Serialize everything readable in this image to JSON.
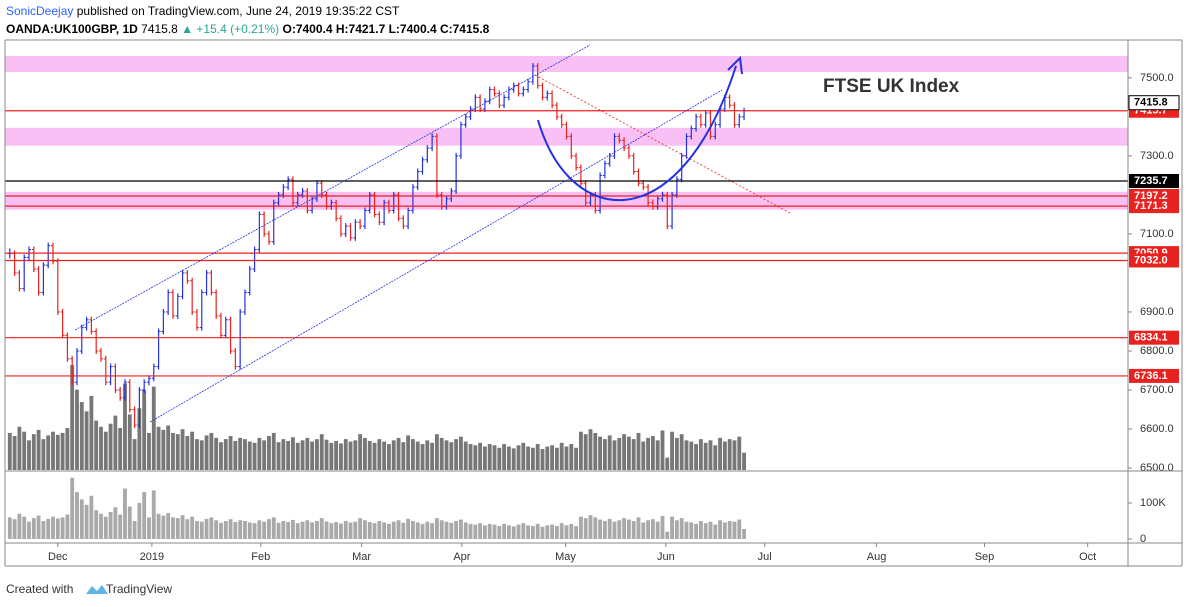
{
  "header": {
    "user": "SonicDeejay",
    "published": "published on TradingView.com, June 24, 2019 19:35:22 CST",
    "symbol": "OANDA:UK100GBP, 1D",
    "last": "7415.8",
    "change": "▲ +15.4 (+0.21%)",
    "open": "O:7400.4",
    "high": "H:7421.7",
    "low": "L:7400.4",
    "close": "C:7415.8"
  },
  "footer": {
    "created": "Created with",
    "brand": "TradingView"
  },
  "chart_data": {
    "type": "ohlc",
    "title": "FTSE UK Index",
    "up_color": "#2433e0",
    "down_color": "#e8221f",
    "volume_color": "#777777",
    "volume_pane_color": "#a9a9a9",
    "values": [
      7050,
      7000,
      6960,
      7040,
      7060,
      7010,
      6950,
      7020,
      7070,
      7030,
      6900,
      6840,
      6780,
      6720,
      6800,
      6860,
      6880,
      6850,
      6800,
      6780,
      6720,
      6760,
      6700,
      6680,
      6720,
      6650,
      6610,
      6700,
      6720,
      6730,
      6760,
      6850,
      6900,
      6950,
      6890,
      6940,
      7000,
      6980,
      6900,
      6860,
      6950,
      7000,
      6950,
      6890,
      6840,
      6880,
      6800,
      6760,
      6900,
      6950,
      7010,
      7060,
      7150,
      7100,
      7080,
      7180,
      7200,
      7220,
      7240,
      7180,
      7200,
      7210,
      7160,
      7190,
      7230,
      7200,
      7170,
      7180,
      7140,
      7100,
      7120,
      7090,
      7130,
      7120,
      7160,
      7200,
      7150,
      7130,
      7180,
      7160,
      7200,
      7140,
      7120,
      7160,
      7220,
      7260,
      7290,
      7320,
      7350,
      7200,
      7170,
      7190,
      7210,
      7300,
      7380,
      7400,
      7420,
      7450,
      7420,
      7440,
      7470,
      7460,
      7430,
      7450,
      7470,
      7480,
      7460,
      7470,
      7490,
      7530,
      7480,
      7450,
      7460,
      7430,
      7400,
      7380,
      7350,
      7300,
      7270,
      7230,
      7180,
      7200,
      7160,
      7250,
      7280,
      7300,
      7350,
      7340,
      7320,
      7300,
      7260,
      7230,
      7220,
      7180,
      7170,
      7190,
      7200,
      7120,
      7200,
      7240,
      7300,
      7350,
      7370,
      7400,
      7380,
      7410,
      7350,
      7380,
      7420,
      7450,
      7430,
      7380,
      7400,
      7415.8
    ],
    "volume": [
      60000,
      55000,
      70000,
      62000,
      48000,
      58000,
      65000,
      50000,
      56000,
      62000,
      57000,
      60000,
      68000,
      170000,
      130000,
      110000,
      95000,
      120000,
      80000,
      70000,
      62000,
      75000,
      88000,
      68000,
      140000,
      90000,
      50000,
      100000,
      130000,
      60000,
      135000,
      70000,
      65000,
      72000,
      60000,
      58000,
      66000,
      55000,
      62000,
      50000,
      48000,
      56000,
      60000,
      52000,
      45000,
      50000,
      55000,
      47000,
      52000,
      50000,
      46000,
      44000,
      52000,
      48000,
      55000,
      60000,
      45000,
      50000,
      47000,
      53000,
      44000,
      48000,
      52000,
      46000,
      50000,
      58000,
      49000,
      44000,
      47000,
      43000,
      50000,
      46000,
      48000,
      58000,
      52000,
      47000,
      44000,
      50000,
      46000,
      42000,
      48000,
      52000,
      45000,
      56000,
      50000,
      46000,
      42000,
      48000,
      44000,
      58000,
      52000,
      48000,
      45000,
      50000,
      54000,
      46000,
      42000,
      40000,
      44000,
      38000,
      42000,
      40000,
      36000,
      42000,
      38000,
      35000,
      40000,
      44000,
      38000,
      36000,
      42000,
      34000,
      38000,
      40000,
      36000,
      44000,
      38000,
      42000,
      36000,
      62000,
      58000,
      66000,
      60000,
      54000,
      50000,
      56000,
      48000,
      52000,
      58000,
      54000,
      50000,
      60000,
      46000,
      52000,
      55000,
      48000,
      64000,
      20000,
      62000,
      52000,
      58000,
      48000,
      46000,
      42000,
      50000,
      44000,
      48000,
      40000,
      52000,
      46000,
      50000,
      48000,
      54000,
      28000
    ],
    "xlim": [
      -1,
      233
    ],
    "xticks": [
      {
        "value": 10,
        "label": "Dec"
      },
      {
        "value": 29.6,
        "label": "2019"
      },
      {
        "value": 52.3,
        "label": "Feb"
      },
      {
        "value": 73.3,
        "label": "Mar"
      },
      {
        "value": 94.2,
        "label": "Apr"
      },
      {
        "value": 115.8,
        "label": "May"
      },
      {
        "value": 136.7,
        "label": "Jun"
      },
      {
        "value": 157.3,
        "label": "Jul"
      },
      {
        "value": 180.6,
        "label": "Aug"
      },
      {
        "value": 203.1,
        "label": "Sep"
      },
      {
        "value": 224.6,
        "label": "Oct"
      }
    ],
    "ylim": [
      6495,
      7597
    ],
    "yticks": [
      {
        "value": 7500,
        "label": "7500.0"
      },
      {
        "value": 7300,
        "label": "7300.0"
      },
      {
        "value": 7100,
        "label": "7100.0"
      },
      {
        "value": 6900,
        "label": "6900.0"
      },
      {
        "value": 6800,
        "label": "6800.0"
      },
      {
        "value": 6700,
        "label": "6700.0"
      },
      {
        "value": 6600,
        "label": "6600.0"
      },
      {
        "value": 6500,
        "label": "6500.0"
      }
    ],
    "vlim": [
      0,
      186000
    ],
    "vticks": [
      {
        "value": 100000,
        "label": "100K"
      },
      0
    ],
    "zones": [
      [
        7515,
        7556
      ],
      [
        7326,
        7372
      ],
      [
        7162,
        7208
      ]
    ],
    "zone_color": "#f8b9f5",
    "levels": [
      7415.7,
      7197.2,
      7171.3,
      7050.9,
      {
        "value": 7032,
        "label": "7032.0"
      },
      6834.1,
      6736.1
    ],
    "level_color": "#e8221f",
    "support": 7235.7,
    "current": 7415.8
  }
}
